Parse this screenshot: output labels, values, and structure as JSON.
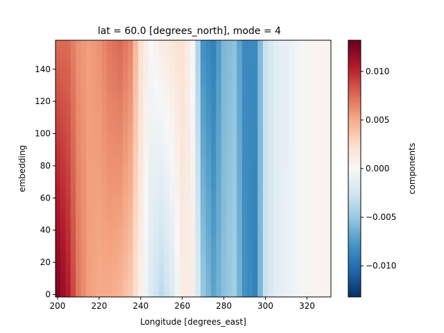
{
  "chart_data": {
    "type": "heatmap",
    "title": "lat = 60.0 [degrees_north], mode = 4",
    "xlabel": "Longitude [degrees_east]",
    "ylabel": "embedding",
    "colorbar_label": "components",
    "colormap": "RdBu_r",
    "xlim": [
      199,
      331.5
    ],
    "ylim": [
      -1.5,
      158
    ],
    "vmin": -0.0132,
    "vmax": 0.0132,
    "x_ticks": [
      200,
      220,
      240,
      260,
      280,
      300,
      320
    ],
    "y_ticks": [
      0,
      20,
      40,
      60,
      80,
      100,
      120,
      140
    ],
    "cbar_ticks": [
      0.01,
      0.005,
      0.0,
      -0.005,
      -0.01
    ],
    "cbar_tick_labels": [
      "0.010",
      "0.005",
      "0.000",
      "−0.005",
      "−0.010"
    ],
    "grid": false,
    "x_range": [
      200,
      330
    ],
    "x_step": 2.5,
    "y_range": [
      0,
      156
    ],
    "y_step": 4,
    "anchors_x": [
      200,
      205,
      210,
      215,
      220,
      225,
      230,
      235,
      240,
      245,
      250,
      255,
      260,
      265,
      270,
      275,
      280,
      285,
      290,
      295,
      300,
      305,
      310,
      315,
      320,
      325,
      330
    ],
    "anchors_low": [
      0.0125,
      0.0105,
      0.007,
      0.0055,
      0.005,
      0.005,
      0.0045,
      0.0035,
      0.0008,
      -0.002,
      -0.0035,
      -0.002,
      0.001,
      0.001,
      -0.005,
      -0.007,
      -0.0055,
      -0.0045,
      -0.008,
      -0.009,
      -0.003,
      -0.0015,
      -0.001,
      -0.0005,
      0.0002,
      0.0004,
      0.0004
    ],
    "anchors_high": [
      0.0075,
      0.0075,
      0.006,
      0.0055,
      0.006,
      0.007,
      0.0075,
      0.0065,
      0.002,
      0.0,
      0.001,
      0.0015,
      0.002,
      0.0,
      -0.008,
      -0.009,
      -0.006,
      -0.0055,
      -0.0085,
      -0.0085,
      -0.003,
      -0.0015,
      -0.0012,
      -0.0005,
      0.0002,
      0.0004,
      0.0004
    ]
  }
}
